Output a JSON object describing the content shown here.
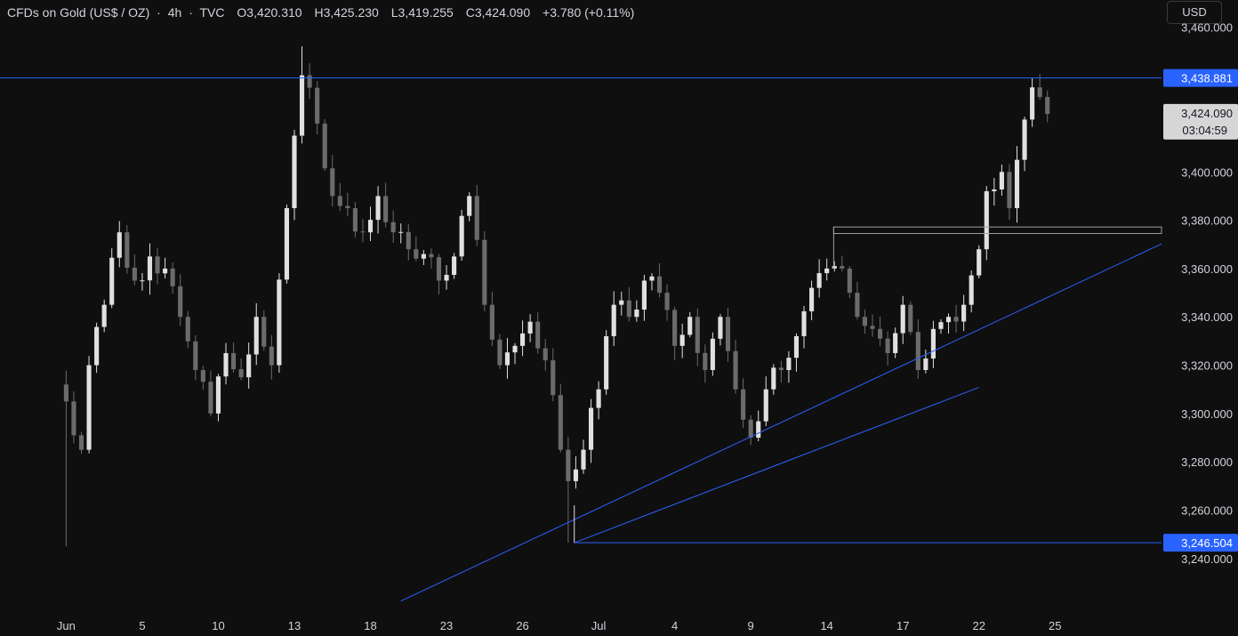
{
  "header": {
    "symbol": "CFDs on Gold (US$ / OZ)",
    "interval": "4h",
    "source": "TVC",
    "open": "O3,420.310",
    "high": "H3,425.230",
    "low": "L3,419.255",
    "close": "C3,424.090",
    "change": "+3.780 (+0.11%)"
  },
  "currency_button": "USD",
  "price_tags": {
    "resistance": "3,438.881",
    "current": "3,424.090",
    "countdown": "03:04:59",
    "support": "3,246.504"
  },
  "colors": {
    "background": "#0f0f0f",
    "candle_up": "#e0e0e0",
    "candle_down": "#6b6b6b",
    "line_blue": "#2962ff",
    "zone_gray": "#9e9e9e",
    "axis_text": "#d1d4dc"
  },
  "chart_data": {
    "type": "candlestick",
    "ylim": [
      3230,
      3466
    ],
    "y_ticks": [
      "3,460.000",
      "3,440.000",
      "3,420.000",
      "3,400.000",
      "3,380.000",
      "3,360.000",
      "3,340.000",
      "3,320.000",
      "3,300.000",
      "3,280.000",
      "3,260.000",
      "3,240.000"
    ],
    "y_tick_values": [
      3460,
      3440,
      3420,
      3400,
      3380,
      3360,
      3340,
      3320,
      3300,
      3280,
      3260,
      3240
    ],
    "x_ticks": [
      {
        "label": "Jun",
        "x": 0
      },
      {
        "label": "5",
        "x": 10
      },
      {
        "label": "10",
        "x": 20
      },
      {
        "label": "13",
        "x": 30
      },
      {
        "label": "18",
        "x": 40
      },
      {
        "label": "23",
        "x": 50
      },
      {
        "label": "26",
        "x": 60
      },
      {
        "label": "Jul",
        "x": 70
      },
      {
        "label": "4",
        "x": 80
      },
      {
        "label": "9",
        "x": 90
      },
      {
        "label": "14",
        "x": 100
      },
      {
        "label": "17",
        "x": 110
      },
      {
        "label": "22",
        "x": 120
      },
      {
        "label": "25",
        "x": 130
      }
    ],
    "x_range": [
      -8.7,
      144
    ],
    "anchors": [
      [
        0,
        3305
      ],
      [
        2,
        3285
      ],
      [
        3,
        3320
      ],
      [
        5,
        3345
      ],
      [
        7,
        3375
      ],
      [
        9,
        3355
      ],
      [
        11,
        3365
      ],
      [
        13,
        3360
      ],
      [
        15,
        3340
      ],
      [
        17,
        3318
      ],
      [
        19,
        3300
      ],
      [
        21,
        3325
      ],
      [
        23,
        3315
      ],
      [
        25,
        3340
      ],
      [
        27,
        3320
      ],
      [
        29,
        3385
      ],
      [
        30,
        3415
      ],
      [
        31,
        3440
      ],
      [
        33,
        3420
      ],
      [
        35,
        3390
      ],
      [
        37,
        3385
      ],
      [
        39,
        3375
      ],
      [
        41,
        3390
      ],
      [
        43,
        3375
      ],
      [
        45,
        3368
      ],
      [
        47,
        3366
      ],
      [
        49,
        3355
      ],
      [
        51,
        3365
      ],
      [
        53,
        3390
      ],
      [
        55,
        3345
      ],
      [
        57,
        3320
      ],
      [
        59,
        3328
      ],
      [
        61,
        3338
      ],
      [
        63,
        3322
      ],
      [
        65,
        3285
      ],
      [
        66,
        3272
      ],
      [
        68,
        3285
      ],
      [
        70,
        3310
      ],
      [
        72,
        3345
      ],
      [
        74,
        3340
      ],
      [
        76,
        3355
      ],
      [
        78,
        3350
      ],
      [
        80,
        3328
      ],
      [
        82,
        3340
      ],
      [
        84,
        3318
      ],
      [
        86,
        3340
      ],
      [
        88,
        3310
      ],
      [
        90,
        3290
      ],
      [
        92,
        3310
      ],
      [
        94,
        3318
      ],
      [
        96,
        3332
      ],
      [
        98,
        3352
      ],
      [
        100,
        3360
      ],
      [
        102,
        3360
      ],
      [
        104,
        3340
      ],
      [
        106,
        3335
      ],
      [
        108,
        3325
      ],
      [
        110,
        3345
      ],
      [
        112,
        3318
      ],
      [
        114,
        3335
      ],
      [
        116,
        3340
      ],
      [
        118,
        3345
      ],
      [
        120,
        3368
      ],
      [
        121,
        3392
      ],
      [
        123,
        3400
      ],
      [
        124,
        3385
      ],
      [
        125,
        3405
      ],
      [
        127,
        3435
      ],
      [
        128,
        3431
      ],
      [
        129,
        3424
      ]
    ],
    "price_levels": [
      {
        "name": "resistance",
        "price": 3438.881
      },
      {
        "name": "support",
        "price": 3246.504,
        "from_x": 66.8
      }
    ],
    "trendlines": [
      {
        "name": "upper-trendline",
        "points": [
          [
            44,
            3222.4
          ],
          [
            144,
            3370.2
          ]
        ]
      },
      {
        "name": "lower-trendline",
        "points": [
          [
            66.8,
            3246.5
          ],
          [
            120,
            3310.8
          ]
        ]
      }
    ],
    "zone": {
      "x_from": 100.9,
      "x_to": 144,
      "top": 3377.2,
      "bottom": 3374.5
    },
    "current_price": 3424.09
  }
}
